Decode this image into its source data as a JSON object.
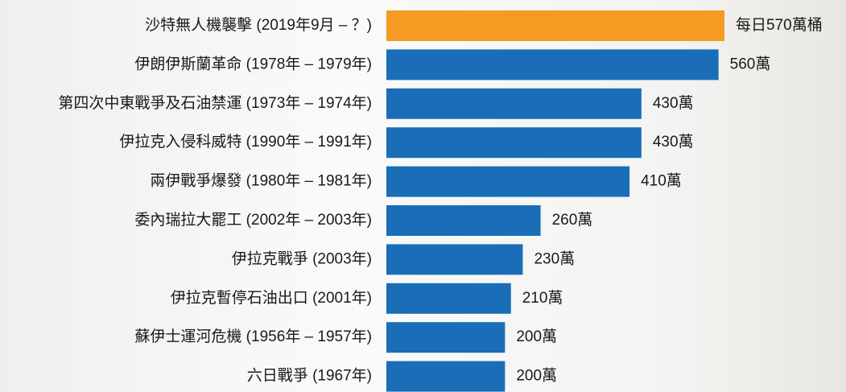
{
  "chart_data": {
    "type": "bar",
    "orientation": "horizontal",
    "categories": [
      "沙特無人機襲擊 (2019年9月 – ？)",
      "伊朗伊斯蘭革命 (1978年 – 1979年)",
      "第四次中東戰爭及石油禁運 (1973年 – 1974年)",
      "伊拉克入侵科威特 (1990年 – 1991年)",
      "兩伊戰爭爆發 (1980年 – 1981年)",
      "委內瑞拉大罷工 (2002年 – 2003年)",
      "伊拉克戰爭 (2003年)",
      "伊拉克暫停石油出口 (2001年)",
      "蘇伊士運河危機 (1956年 – 1957年)",
      "六日戰爭 (1967年)"
    ],
    "values": [
      570,
      560,
      430,
      430,
      410,
      260,
      230,
      210,
      200,
      200
    ],
    "value_labels": [
      "每日570萬桶",
      "560萬",
      "430萬",
      "430萬",
      "410萬",
      "260萬",
      "230萬",
      "210萬",
      "200萬",
      "200萬"
    ],
    "colors": [
      "#f59a23",
      "#1a6eb8",
      "#1a6eb8",
      "#1a6eb8",
      "#1a6eb8",
      "#1a6eb8",
      "#1a6eb8",
      "#1a6eb8",
      "#1a6eb8",
      "#1a6eb8"
    ]
  }
}
